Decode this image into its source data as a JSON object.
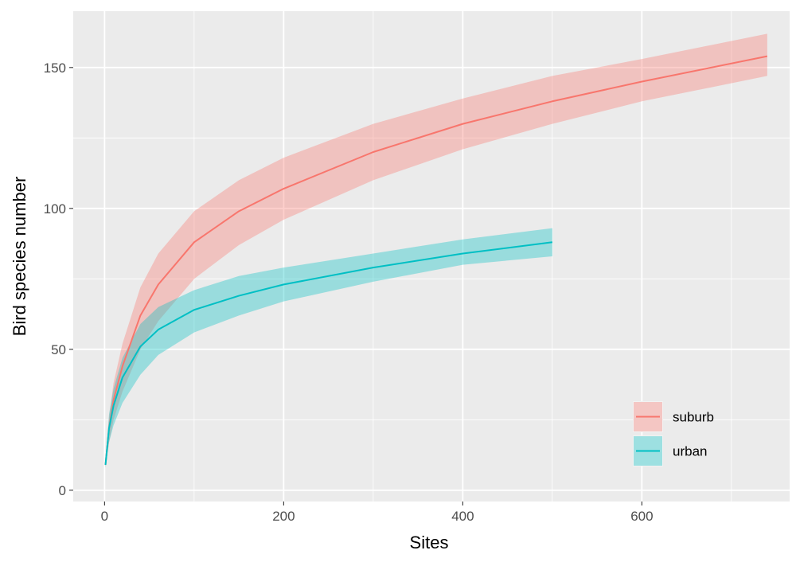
{
  "chart_data": {
    "type": "line",
    "xlabel": "Sites",
    "ylabel": "Bird species number",
    "xlim": [
      -35,
      765
    ],
    "ylim": [
      -4,
      170
    ],
    "x_ticks": [
      0,
      200,
      400,
      600
    ],
    "x_tick_labels": [
      "0",
      "200",
      "400",
      "600"
    ],
    "y_ticks": [
      0,
      50,
      100,
      150
    ],
    "y_tick_labels": [
      "0",
      "50",
      "100",
      "150"
    ],
    "grid": true,
    "legend_position": "bottom-right",
    "series": [
      {
        "name": "suburb",
        "color": "#F8766D",
        "x": [
          1,
          5,
          10,
          20,
          40,
          60,
          100,
          150,
          200,
          300,
          400,
          500,
          600,
          740
        ],
        "y": [
          9,
          22,
          32,
          44,
          62,
          73,
          88,
          99,
          107,
          120,
          130,
          138,
          145,
          154
        ],
        "lower": [
          8,
          17,
          25,
          35,
          50,
          60,
          75,
          87,
          96,
          110,
          121,
          130,
          138,
          147
        ],
        "upper": [
          10,
          26,
          38,
          52,
          72,
          84,
          99,
          110,
          118,
          130,
          139,
          147,
          153,
          162
        ]
      },
      {
        "name": "urban",
        "color": "#00BFC4",
        "x": [
          1,
          5,
          10,
          20,
          40,
          60,
          100,
          150,
          200,
          300,
          400,
          500
        ],
        "y": [
          9,
          22,
          30,
          40,
          51,
          57,
          64,
          69,
          73,
          79,
          84,
          88
        ],
        "lower": [
          8,
          17,
          23,
          31,
          41,
          48,
          56,
          62,
          67,
          74,
          80,
          83
        ],
        "upper": [
          10,
          27,
          36,
          47,
          59,
          65,
          71,
          76,
          79,
          84,
          89,
          93
        ]
      }
    ]
  }
}
